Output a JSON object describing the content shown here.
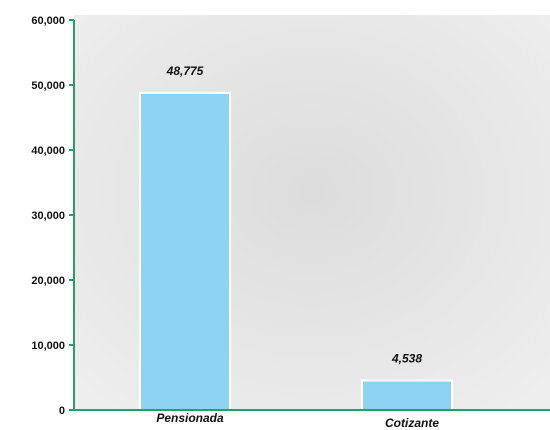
{
  "chart_data": {
    "type": "bar",
    "title": "",
    "xlabel": "",
    "ylabel": "",
    "categories": [
      "Pensionada",
      "Cotizante"
    ],
    "values": [
      48775,
      4538
    ],
    "data_labels": [
      "48,775",
      "4,538"
    ],
    "ylim": [
      0,
      60000
    ],
    "yticks": [
      0,
      10000,
      20000,
      30000,
      40000,
      50000,
      60000
    ],
    "ytick_labels": [
      "0",
      "10,000",
      "20,000",
      "30,000",
      "40,000",
      "50,000",
      "60,000"
    ],
    "grid": false,
    "legend": "none",
    "colors": {
      "bar": "#8fd3f3",
      "bar_edge": "#ffffff",
      "axis": "#2e9a6a",
      "plot_background": "#e6e6e6"
    }
  }
}
